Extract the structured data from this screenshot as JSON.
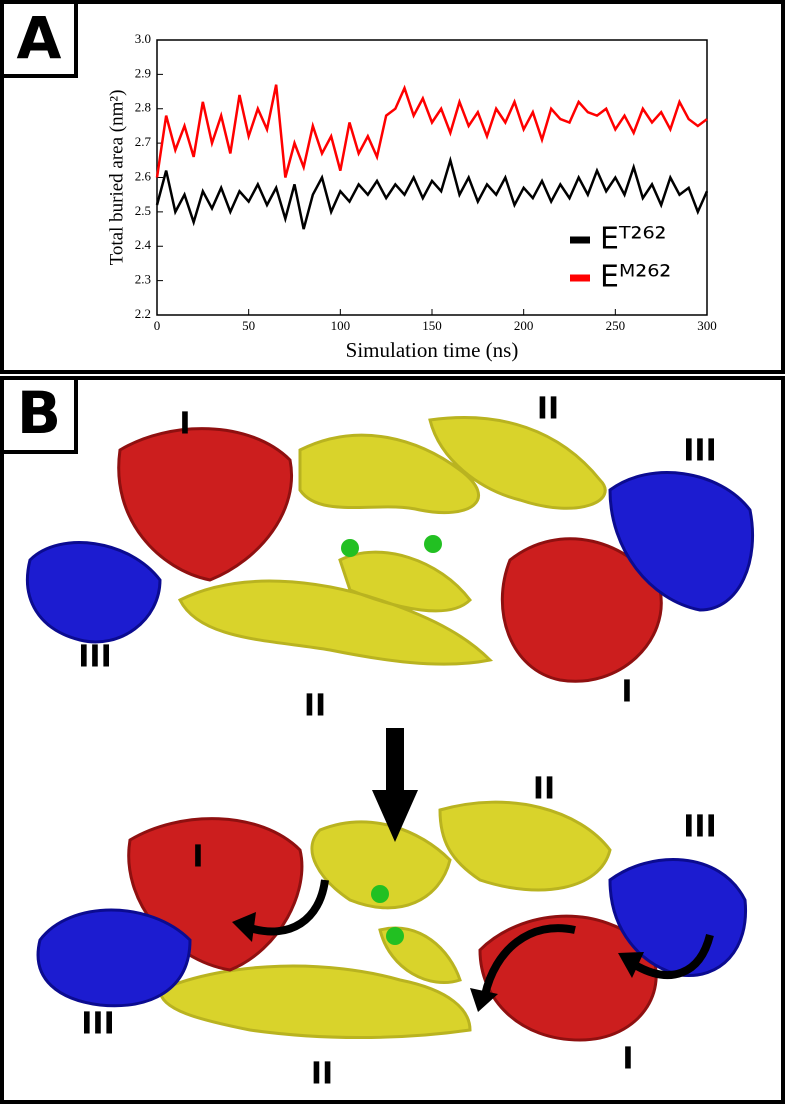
{
  "panel_a": {
    "label": "A"
  },
  "chart_data": {
    "type": "line",
    "xlabel": "Simulation time (ns)",
    "ylabel": "Total buried area (nm²)",
    "x": [
      0,
      5,
      10,
      15,
      20,
      25,
      30,
      35,
      40,
      45,
      50,
      55,
      60,
      65,
      70,
      75,
      80,
      85,
      90,
      95,
      100,
      105,
      110,
      115,
      120,
      125,
      130,
      135,
      140,
      145,
      150,
      155,
      160,
      165,
      170,
      175,
      180,
      185,
      190,
      195,
      200,
      205,
      210,
      215,
      220,
      225,
      230,
      235,
      240,
      245,
      250,
      255,
      260,
      265,
      270,
      275,
      280,
      285,
      290,
      295,
      300
    ],
    "series": [
      {
        "name": "Eᵀ²⁶²",
        "color": "#000000",
        "values": [
          2.52,
          2.62,
          2.5,
          2.55,
          2.47,
          2.56,
          2.51,
          2.57,
          2.5,
          2.56,
          2.53,
          2.58,
          2.52,
          2.57,
          2.48,
          2.58,
          2.45,
          2.55,
          2.6,
          2.5,
          2.56,
          2.53,
          2.58,
          2.55,
          2.59,
          2.54,
          2.58,
          2.55,
          2.6,
          2.54,
          2.59,
          2.56,
          2.65,
          2.55,
          2.6,
          2.53,
          2.58,
          2.55,
          2.6,
          2.52,
          2.57,
          2.54,
          2.59,
          2.53,
          2.58,
          2.54,
          2.6,
          2.55,
          2.62,
          2.56,
          2.6,
          2.55,
          2.63,
          2.54,
          2.58,
          2.52,
          2.6,
          2.55,
          2.57,
          2.5,
          2.56
        ]
      },
      {
        "name": "Eᴹ²⁶²",
        "color": "#ff0000",
        "values": [
          2.6,
          2.78,
          2.68,
          2.75,
          2.66,
          2.82,
          2.7,
          2.78,
          2.67,
          2.84,
          2.72,
          2.8,
          2.74,
          2.87,
          2.6,
          2.7,
          2.63,
          2.75,
          2.67,
          2.72,
          2.62,
          2.76,
          2.67,
          2.72,
          2.66,
          2.78,
          2.8,
          2.86,
          2.78,
          2.83,
          2.76,
          2.8,
          2.73,
          2.82,
          2.75,
          2.79,
          2.72,
          2.8,
          2.76,
          2.82,
          2.74,
          2.79,
          2.71,
          2.8,
          2.77,
          2.76,
          2.82,
          2.79,
          2.78,
          2.8,
          2.74,
          2.78,
          2.73,
          2.8,
          2.76,
          2.79,
          2.74,
          2.82,
          2.77,
          2.75,
          2.77
        ]
      }
    ],
    "xlim": [
      0,
      300
    ],
    "xticks": [
      0,
      50,
      100,
      150,
      200,
      250,
      300
    ],
    "ylim": [
      2.2,
      3.0
    ],
    "yticks": [
      2.2,
      2.3,
      2.4,
      2.5,
      2.6,
      2.7,
      2.8,
      2.9,
      {
        "value": 3.0,
        "label": "3.0"
      }
    ],
    "legend": "lower-right"
  },
  "panel_b": {
    "label": "B",
    "domain_labels": [
      "I",
      "II",
      "III",
      "III",
      "II",
      "I",
      "I",
      "II",
      "III",
      "III",
      "II",
      "I"
    ]
  }
}
